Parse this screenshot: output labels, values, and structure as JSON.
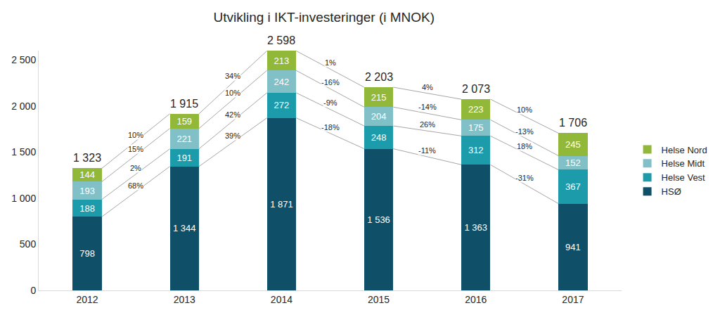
{
  "chart_data": {
    "type": "bar",
    "title": "Utvikling i IKT-investeringer (i MNOK)",
    "categories": [
      "2012",
      "2013",
      "2014",
      "2015",
      "2016",
      "2017"
    ],
    "stacked": true,
    "data_labels": true,
    "legend": "right",
    "grid": false,
    "ylim": [
      0,
      2600
    ],
    "yticks": [
      0,
      500,
      {
        "value": 1000,
        "label": "1 000"
      },
      {
        "value": 1500,
        "label": "1 500"
      },
      {
        "value": 2000,
        "label": "2 000"
      },
      {
        "value": 2500,
        "label": "2 500"
      }
    ],
    "totals": [
      1323,
      1915,
      2598,
      2203,
      2073,
      1706
    ],
    "total_labels": [
      "1 323",
      "1 915",
      "2 598",
      "2 203",
      "2 073",
      "1 706"
    ],
    "series": [
      {
        "name": "HSØ",
        "color": "#0f5068",
        "values": [
          798,
          1344,
          1871,
          1536,
          1363,
          941
        ],
        "value_labels": [
          "798",
          "1 344",
          "1 871",
          "1 536",
          "1 363",
          "941"
        ],
        "changes": [
          68,
          39,
          -18,
          -11,
          -31
        ],
        "change_labels": [
          "68%",
          "39%",
          "-18%",
          "-11%",
          "-31%"
        ]
      },
      {
        "name": "Helse Vest",
        "color": "#1c9bab",
        "values": [
          188,
          191,
          272,
          248,
          312,
          367
        ],
        "changes": [
          2,
          42,
          -9,
          26,
          18
        ],
        "change_labels": [
          "2%",
          "42%",
          "-9%",
          "26%",
          "18%"
        ]
      },
      {
        "name": "Helse Midt",
        "color": "#80c0c6",
        "values": [
          193,
          221,
          242,
          204,
          175,
          152
        ],
        "changes": [
          15,
          10,
          -16,
          -14,
          -13
        ],
        "change_labels": [
          "15%",
          "10%",
          "-16%",
          "-14%",
          "-13%"
        ]
      },
      {
        "name": "Helse Nord",
        "color": "#92b83a",
        "values": [
          144,
          159,
          213,
          215,
          223,
          245
        ],
        "changes": [
          10,
          34,
          1,
          4,
          10
        ],
        "change_labels": [
          "10%",
          "34%",
          "1%",
          "4%",
          "10%"
        ]
      }
    ]
  }
}
